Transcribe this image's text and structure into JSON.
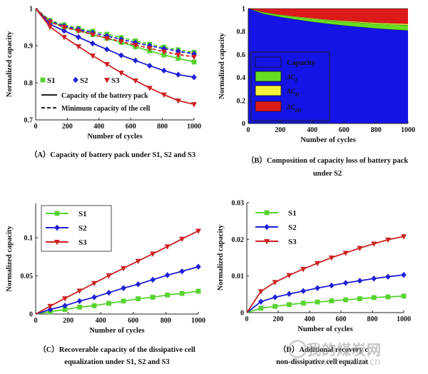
{
  "captions": {
    "a": "（A）Capacity of battery pack under S1, S2 and S3",
    "b1": "（B）Composition of capacity loss of battery pack",
    "b2": "under S2",
    "c1": "（C）Recoverable capacity of the dissipative cell",
    "c2": "equalization under S1, S2 and S3",
    "d1": "（D）Additional recovery c",
    "d2": "non-dissipative cell equalizat"
  },
  "watermark": {
    "cn": "我的煤炭网",
    "url": "www.mycoal.cn"
  },
  "colors": {
    "s1": "#57d32f",
    "s2": "#1f1fd6",
    "s3": "#cc2222"
  },
  "chart_data": [
    {
      "panel": "A",
      "type": "line",
      "xlabel": "Number of cycles",
      "ylabel": "Normalized capacity",
      "xlim": [
        0,
        1000
      ],
      "ylim": [
        0.7,
        1.0
      ],
      "xticks": [
        0,
        200,
        400,
        600,
        800,
        1000
      ],
      "yticks": [
        0.7,
        0.8,
        0.9,
        1
      ],
      "ytick_labels": [
        "0.7",
        "0.8",
        "0.9",
        "1"
      ],
      "x": [
        0,
        90,
        180,
        270,
        360,
        450,
        540,
        630,
        720,
        810,
        900,
        1000
      ],
      "series": [
        {
          "name": "S1",
          "marker": "square",
          "color": "#57d32f",
          "pack": [
            1.0,
            0.965,
            0.951,
            0.941,
            0.93,
            0.92,
            0.909,
            0.897,
            0.886,
            0.875,
            0.866,
            0.856
          ],
          "cell_min": [
            1.0,
            0.968,
            0.956,
            0.947,
            0.939,
            0.931,
            0.922,
            0.913,
            0.904,
            0.896,
            0.889,
            0.882
          ]
        },
        {
          "name": "S2",
          "marker": "diamond",
          "color": "#1f1fd6",
          "pack": [
            1.0,
            0.958,
            0.94,
            0.923,
            0.906,
            0.89,
            0.874,
            0.86,
            0.846,
            0.833,
            0.822,
            0.815
          ],
          "cell_min": [
            1.0,
            0.966,
            0.953,
            0.944,
            0.935,
            0.926,
            0.917,
            0.908,
            0.9,
            0.892,
            0.885,
            0.878
          ]
        },
        {
          "name": "S3",
          "marker": "triangle-down",
          "color": "#cc2222",
          "pack": [
            1.0,
            0.951,
            0.923,
            0.898,
            0.873,
            0.85,
            0.827,
            0.806,
            0.786,
            0.768,
            0.752,
            0.742
          ],
          "cell_min": [
            1.0,
            0.964,
            0.95,
            0.94,
            0.93,
            0.92,
            0.911,
            0.902,
            0.893,
            0.884,
            0.876,
            0.87
          ]
        }
      ],
      "legend": [
        "S1",
        "S2",
        "S3",
        "Capacity of the battery pack",
        "Minimum capacity of the cell"
      ]
    },
    {
      "panel": "B",
      "type": "area",
      "xlabel": "Number of cycles",
      "ylabel": "Normalized capacity",
      "xlim": [
        0,
        1000
      ],
      "ylim": [
        0,
        1
      ],
      "xticks": [
        0,
        200,
        400,
        600,
        800,
        1000
      ],
      "yticks": [
        0,
        0.2,
        0.4,
        0.6,
        0.8,
        1
      ],
      "x": [
        0,
        100,
        200,
        300,
        400,
        500,
        600,
        700,
        800,
        900,
        1000
      ],
      "series": [
        {
          "name": "Capacity",
          "color": "#1414e6",
          "values": [
            1.0,
            0.953,
            0.927,
            0.905,
            0.885,
            0.868,
            0.853,
            0.84,
            0.828,
            0.818,
            0.81
          ]
        },
        {
          "name": "ΔC_I",
          "color": "#66dd22",
          "values": [
            0,
            0.013,
            0.018,
            0.022,
            0.026,
            0.03,
            0.034,
            0.037,
            0.04,
            0.043,
            0.046
          ]
        },
        {
          "name": "ΔC_II",
          "color": "#f2f23a",
          "values": [
            0,
            0.003,
            0.004,
            0.005,
            0.006,
            0.007,
            0.008,
            0.009,
            0.01,
            0.011,
            0.012
          ]
        },
        {
          "name": "ΔC_III",
          "color": "#dd1a1a",
          "values": [
            0,
            0.031,
            0.051,
            0.068,
            0.083,
            0.095,
            0.105,
            0.114,
            0.122,
            0.128,
            0.132
          ]
        }
      ],
      "legend_labels": [
        "Capacity",
        "ΔC",
        "ΔC",
        "ΔC"
      ],
      "legend_subscripts": [
        "",
        "I",
        "II",
        "III"
      ]
    },
    {
      "panel": "C",
      "type": "line",
      "xlabel": "Number of cycles",
      "ylabel": "Normalized capacity",
      "xlim": [
        0,
        1000
      ],
      "ylim": [
        0,
        0.145
      ],
      "xticks": [
        0,
        200,
        400,
        600,
        800,
        1000
      ],
      "yticks": [
        0,
        0.05,
        0.1
      ],
      "ytick_labels": [
        "0",
        "0.05",
        "0.1"
      ],
      "x": [
        0,
        90,
        180,
        270,
        360,
        450,
        540,
        630,
        720,
        810,
        900,
        1000
      ],
      "series": [
        {
          "name": "S1",
          "marker": "square",
          "color": "#57d32f",
          "values": [
            0,
            0.003,
            0.006,
            0.009,
            0.011,
            0.014,
            0.017,
            0.02,
            0.022,
            0.025,
            0.027,
            0.03
          ]
        },
        {
          "name": "S2",
          "marker": "diamond",
          "color": "#1f1fd6",
          "values": [
            0,
            0.006,
            0.011,
            0.017,
            0.022,
            0.028,
            0.034,
            0.039,
            0.045,
            0.051,
            0.056,
            0.062
          ]
        },
        {
          "name": "S3",
          "marker": "triangle-down",
          "color": "#cc2222",
          "values": [
            0,
            0.0105,
            0.0205,
            0.0305,
            0.0405,
            0.0505,
            0.06,
            0.0695,
            0.079,
            0.0885,
            0.0985,
            0.109
          ]
        }
      ],
      "legend": [
        "S1",
        "S2",
        "S3"
      ]
    },
    {
      "panel": "D",
      "type": "line",
      "xlabel": "Number of cycles",
      "ylabel": "Normalized capacity",
      "xlim": [
        0,
        1000
      ],
      "ylim": [
        0,
        0.03
      ],
      "xticks": [
        0,
        200,
        400,
        600,
        800,
        1000
      ],
      "yticks": [
        0,
        0.01,
        0.02,
        0.03
      ],
      "ytick_labels": [
        "0",
        "0.01",
        "0.02",
        "0.03"
      ],
      "x": [
        0,
        90,
        180,
        270,
        360,
        450,
        540,
        630,
        720,
        810,
        900,
        1000
      ],
      "series": [
        {
          "name": "S1",
          "marker": "square",
          "color": "#57d32f",
          "values": [
            0,
            0.0012,
            0.0017,
            0.0022,
            0.0026,
            0.0029,
            0.0032,
            0.0035,
            0.0038,
            0.0041,
            0.0043,
            0.0045
          ]
        },
        {
          "name": "S2",
          "marker": "diamond",
          "color": "#1f1fd6",
          "values": [
            0,
            0.003,
            0.0042,
            0.0051,
            0.0059,
            0.0067,
            0.0074,
            0.0081,
            0.0087,
            0.0093,
            0.0098,
            0.0103
          ]
        },
        {
          "name": "S3",
          "marker": "triangle-down",
          "color": "#cc2222",
          "values": [
            0,
            0.0058,
            0.0083,
            0.0102,
            0.0119,
            0.0135,
            0.015,
            0.0163,
            0.0176,
            0.0188,
            0.0199,
            0.0208
          ]
        }
      ],
      "legend": [
        "S1",
        "S2",
        "S3"
      ]
    }
  ]
}
